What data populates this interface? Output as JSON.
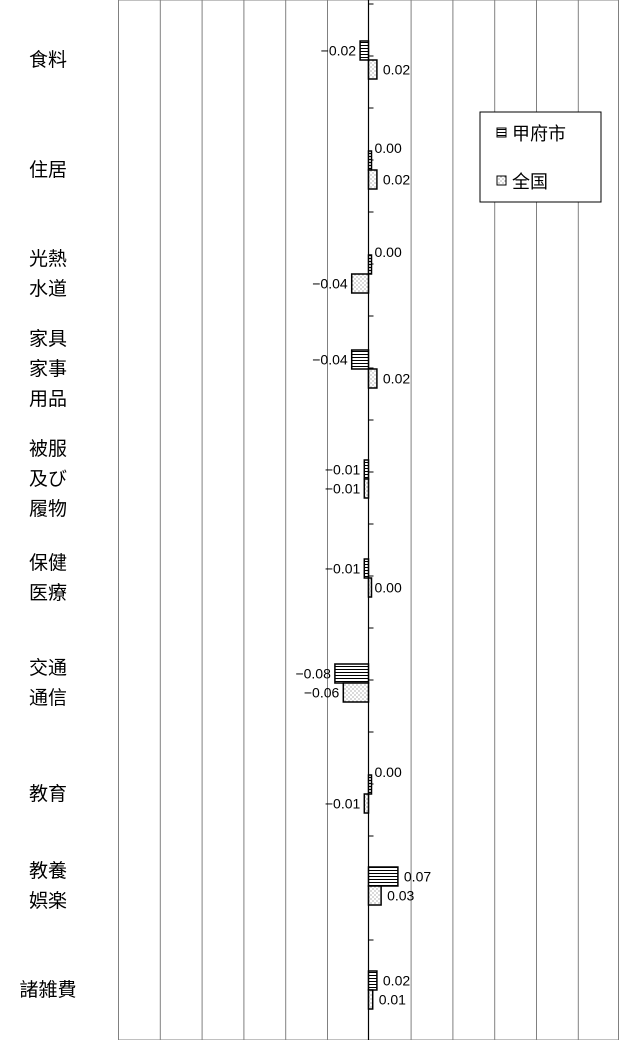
{
  "chart_data": {
    "type": "bar",
    "orientation": "horizontal",
    "categories": [
      [
        "食料"
      ],
      [
        "住居"
      ],
      [
        "光熱",
        "水道"
      ],
      [
        "家具",
        "家事",
        "用品"
      ],
      [
        "被服",
        "及び",
        "履物"
      ],
      [
        "保健",
        "医療"
      ],
      [
        "交通",
        "通信"
      ],
      [
        "教育"
      ],
      [
        "教養",
        "娯楽"
      ],
      [
        "諸雑費"
      ]
    ],
    "series": [
      {
        "name": "甲府市",
        "pattern": "horizontal-lines",
        "values": [
          -0.02,
          0.0,
          0.0,
          -0.04,
          -0.01,
          -0.01,
          -0.08,
          0.0,
          0.07,
          0.02
        ],
        "labels": [
          "−0.02",
          "0.00",
          "0.00",
          "−0.04",
          "−0.01",
          "−0.01",
          "−0.08",
          "0.00",
          "0.07",
          "0.02"
        ]
      },
      {
        "name": "全国",
        "pattern": "dots",
        "values": [
          0.02,
          0.02,
          -0.04,
          0.02,
          -0.01,
          0.0,
          -0.06,
          -0.01,
          0.03,
          0.01
        ],
        "labels": [
          "0.02",
          "0.02",
          "−0.04",
          "0.02",
          "−0.01",
          "0.00",
          "−0.06",
          "−0.01",
          "0.03",
          "0.01"
        ]
      }
    ],
    "xlim": [
      -0.6,
      0.6
    ],
    "grid": true,
    "legend_position": "top-right",
    "colors": {
      "line": "#000000",
      "grid": "#808080",
      "dots": "#7f7f7f"
    }
  }
}
